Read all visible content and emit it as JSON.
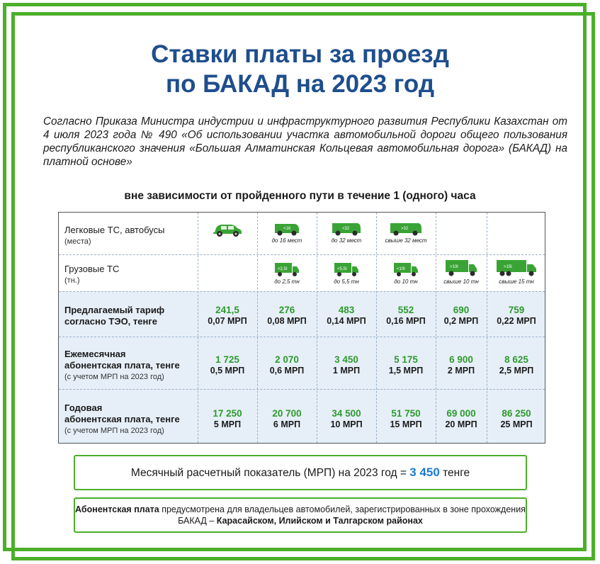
{
  "title_line1": "Ставки платы за проезд",
  "title_line2": "по БАКАД на 2023 год",
  "intro": "Согласно Приказа Министра индустрии и инфраструктурного развития Республики Казахстан от 4 июля 2023 года № 490 «Об использовании участка автомобильной дороги общего пользования республиканского значения «Большая Алматинская Кольцевая автомобильная дорога» (БАКАД) на платной основе»",
  "subtitle": "вне зависимости от пройденного пути в течение 1 (одного) часа",
  "colors": {
    "frame": "#4caf2a",
    "title": "#1e4e8c",
    "value_green": "#2e9a2e",
    "mrp_blue": "#1a7bd6",
    "row_shade": "#e6eff8"
  },
  "table": {
    "row_passenger": {
      "label": "Легковые ТС, автобусы",
      "sub": "(места)",
      "icons": [
        {
          "icon": "car-icon",
          "caption": "",
          "badge": ""
        },
        {
          "icon": "minibus-icon",
          "caption": "до 16 мест",
          "badge": "<16"
        },
        {
          "icon": "bus-icon",
          "caption": "до 32 мест",
          "badge": "<32"
        },
        {
          "icon": "large-bus-icon",
          "caption": "свыше 32 мест",
          "badge": ">32"
        }
      ]
    },
    "row_truck": {
      "label": "Грузовые ТС",
      "sub": "(тн.)",
      "icons": [
        {
          "icon": "truck-icon",
          "caption": "до 2,5 тн",
          "badge": "<2,5t"
        },
        {
          "icon": "truck-icon",
          "caption": "до 5,5 тн",
          "badge": "<5,5t"
        },
        {
          "icon": "truck-icon",
          "caption": "до 10 тн",
          "badge": "<10t"
        },
        {
          "icon": "truck-icon",
          "caption": "свыше 10 тн",
          "badge": ">10t"
        },
        {
          "icon": "truck-icon",
          "caption": "свыше 15 тн",
          "badge": ">15t"
        }
      ]
    },
    "row_tariff": {
      "label_line1": "Предлагаемый тариф",
      "label_line2": "согласно ТЭО, тенге",
      "values": [
        {
          "tenge": "241,5",
          "mrp": "0,07 МРП"
        },
        {
          "tenge": "276",
          "mrp": "0,08 МРП"
        },
        {
          "tenge": "483",
          "mrp": "0,14 МРП"
        },
        {
          "tenge": "552",
          "mrp": "0,16 МРП"
        },
        {
          "tenge": "690",
          "mrp": "0,2 МРП"
        },
        {
          "tenge": "759",
          "mrp": "0,22 МРП"
        }
      ]
    },
    "row_monthly": {
      "label_line1": "Ежемесячная",
      "label_line2": "абонентская плата, тенге",
      "sub": "(с учетом МРП на 2023 год)",
      "values": [
        {
          "tenge": "1 725",
          "mrp": "0,5 МРП"
        },
        {
          "tenge": "2 070",
          "mrp": "0,6 МРП"
        },
        {
          "tenge": "3 450",
          "mrp": "1 МРП"
        },
        {
          "tenge": "5 175",
          "mrp": "1,5 МРП"
        },
        {
          "tenge": "6 900",
          "mrp": "2 МРП"
        },
        {
          "tenge": "8 625",
          "mrp": "2,5 МРП"
        }
      ]
    },
    "row_yearly": {
      "label_line1": "Годовая",
      "label_line2": "абонентская плата, тенге",
      "sub": "(с учетом МРП на 2023 год)",
      "values": [
        {
          "tenge": "17 250",
          "mrp": "5 МРП"
        },
        {
          "tenge": "20 700",
          "mrp": "6 МРП"
        },
        {
          "tenge": "34 500",
          "mrp": "10 МРП"
        },
        {
          "tenge": "51 750",
          "mrp": "15 МРП"
        },
        {
          "tenge": "69 000",
          "mrp": "20 МРП"
        },
        {
          "tenge": "86 250",
          "mrp": "25 МРП"
        }
      ]
    }
  },
  "mrp_box": {
    "text_before": "Месячный расчетный показатель (МРП) на 2023 год = ",
    "value": "3 450",
    "text_after": " тенге"
  },
  "note_box": {
    "bold_start": "Абонентская плата",
    "text_mid": " предусмотрена для владельцев автомобилей, зарегистрированных в зоне прохождения БАКАД – ",
    "bold_end": "Карасайском, Илийском и Талгарском районах"
  }
}
